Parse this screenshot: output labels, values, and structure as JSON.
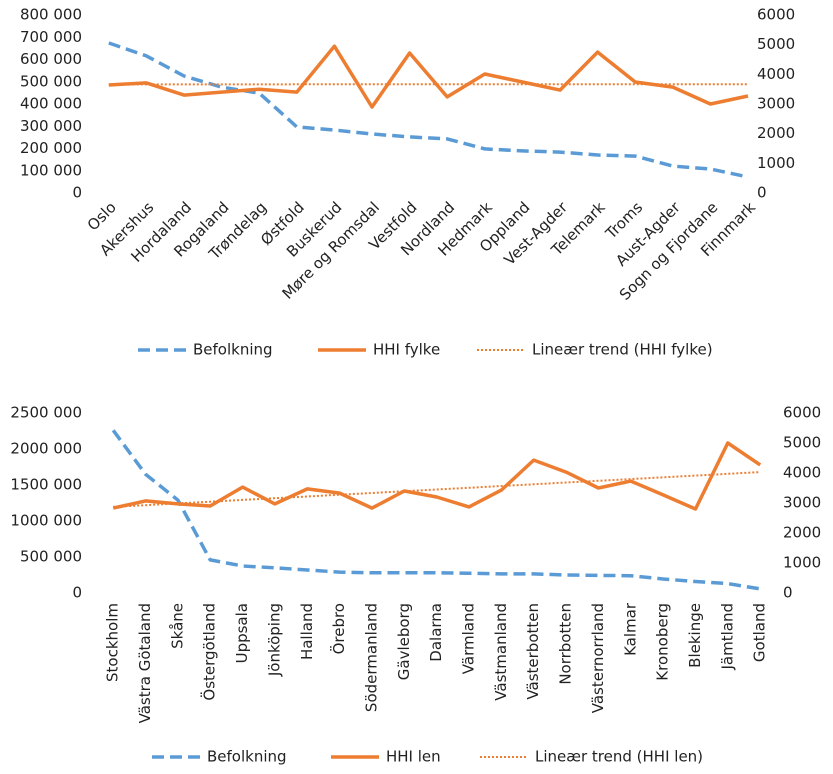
{
  "chart_data": [
    {
      "type": "line",
      "categories": [
        "Oslo",
        "Akershus",
        "Hordaland",
        "Rogaland",
        "Trøndelag",
        "Østfold",
        "Buskerud",
        "Møre og Romsdal",
        "Vestfold",
        "Nordland",
        "Hedmark",
        "Oppland",
        "Vest-Agder",
        "Telemark",
        "Troms",
        "Aust-Agder",
        "Sogn og Fjordane",
        "Finnmark"
      ],
      "series": [
        {
          "name": "Befolkning",
          "color": "#5b9bd5",
          "style": "dashed",
          "axis": "y",
          "values": [
            674000,
            616000,
            526000,
            476000,
            449000,
            297000,
            283000,
            265000,
            252000,
            243000,
            198000,
            189000,
            184000,
            171000,
            166000,
            121000,
            108000,
            72000
          ]
        },
        {
          "name": "HHI fylke",
          "color": "#ed7d31",
          "style": "solid",
          "axis": "y2",
          "values": [
            3640,
            3710,
            3300,
            3400,
            3500,
            3400,
            4950,
            2900,
            4720,
            3240,
            4010,
            3740,
            3470,
            4750,
            3740,
            3570,
            3000,
            3270
          ]
        },
        {
          "name": "Lineær trend (HHI fylke)",
          "color": "#ed7d31",
          "style": "dotted",
          "axis": "y2",
          "values": [
            3660,
            3661,
            3661,
            3662,
            3662,
            3663,
            3663,
            3664,
            3664,
            3665,
            3665,
            3666,
            3666,
            3667,
            3667,
            3668,
            3668,
            3669
          ]
        }
      ],
      "ylim": [
        0,
        800000
      ],
      "yticks": [
        0,
        {
          "value": 100000,
          "label": "100 000"
        },
        {
          "value": 200000,
          "label": "200 000"
        },
        {
          "value": 300000,
          "label": "300 000"
        },
        {
          "value": 400000,
          "label": "400 000"
        },
        {
          "value": 500000,
          "label": "500 000"
        },
        {
          "value": 600000,
          "label": "600 000"
        },
        {
          "value": 700000,
          "label": "700 000"
        },
        {
          "value": 800000,
          "label": "800 000"
        }
      ],
      "y2lim": [
        0,
        6000
      ],
      "y2ticks": [
        0,
        1000,
        2000,
        3000,
        4000,
        5000,
        6000
      ],
      "grid": false,
      "legend": "bottom"
    },
    {
      "type": "line",
      "categories": [
        "Stockholm",
        "Västra Götaland",
        "Skåne",
        "Östergötland",
        "Uppsala",
        "Jönköping",
        "Halland",
        "Örebro",
        "Södermanland",
        "Gävleborg",
        "Dalarna",
        "Värmland",
        "Västmanland",
        "Västerbotten",
        "Norrbotten",
        "Västernorrland",
        "Kalmar",
        "Kronoberg",
        "Blekinge",
        "Jämtland",
        "Gotland"
      ],
      "series": [
        {
          "name": "Befolkning",
          "color": "#5b9bd5",
          "style": "dashed",
          "axis": "y",
          "values": [
            2260000,
            1650000,
            1290000,
            460000,
            375000,
            350000,
            320000,
            290000,
            280000,
            280000,
            280000,
            275000,
            265000,
            265000,
            250000,
            245000,
            240000,
            195000,
            160000,
            130000,
            57000
          ]
        },
        {
          "name": "HHI len",
          "color": "#ed7d31",
          "style": "solid",
          "axis": "y2",
          "values": [
            2830,
            3070,
            2970,
            2900,
            3530,
            2970,
            3470,
            3330,
            2830,
            3400,
            3200,
            2870,
            3430,
            4430,
            4030,
            3500,
            3730,
            3270,
            2800,
            5000,
            4270
          ]
        },
        {
          "name": "Lineær trend (HHI len)",
          "color": "#ed7d31",
          "style": "dotted",
          "axis": "y2",
          "values": [
            2870,
            2928,
            2986,
            3044,
            3102,
            3160,
            3218,
            3276,
            3334,
            3392,
            3450,
            3508,
            3566,
            3624,
            3682,
            3740,
            3798,
            3856,
            3914,
            3972,
            4030
          ]
        }
      ],
      "ylim": [
        0,
        2500000
      ],
      "yticks": [
        0,
        {
          "value": 500000,
          "label": "500 000"
        },
        {
          "value": 1000000,
          "label": "1000 000"
        },
        {
          "value": 1500000,
          "label": "1500 000"
        },
        {
          "value": 2000000,
          "label": "2000 000"
        },
        {
          "value": 2500000,
          "label": "2500 000"
        }
      ],
      "y2lim": [
        0,
        6000
      ],
      "y2ticks": [
        0,
        1000,
        2000,
        3000,
        4000,
        5000,
        6000
      ],
      "grid": false,
      "legend": "bottom"
    }
  ]
}
